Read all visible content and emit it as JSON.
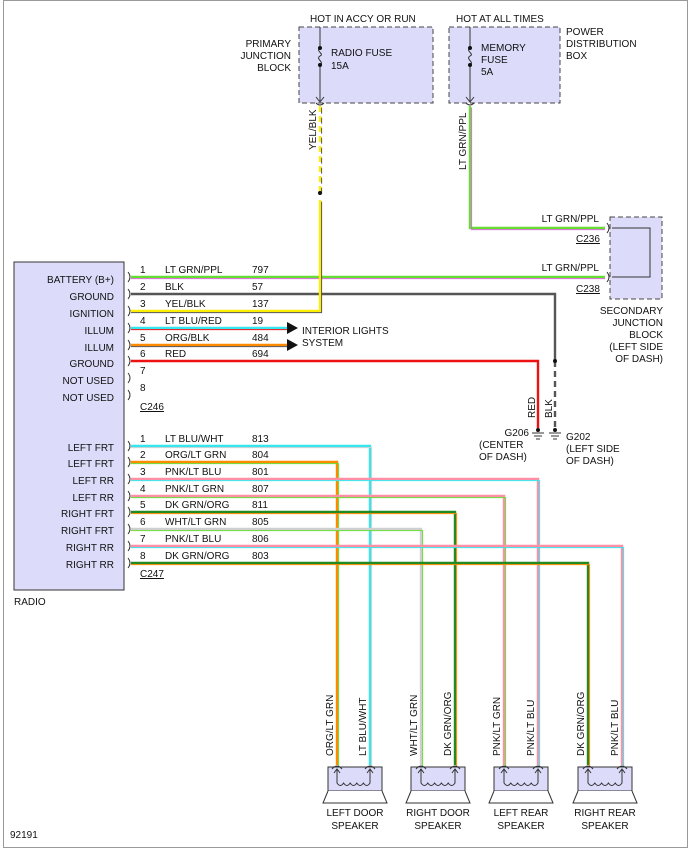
{
  "fuses": {
    "primary": {
      "header": "HOT IN ACCY OR RUN",
      "label": [
        "PRIMARY",
        "JUNCTION",
        "BLOCK"
      ],
      "fuse": [
        "RADIO FUSE",
        "15A"
      ],
      "wire": "YEL/BLK"
    },
    "power": {
      "header": "HOT AT ALL TIMES",
      "label": [
        "POWER",
        "DISTRIBUTION",
        "BOX"
      ],
      "fuse": [
        "MEMORY",
        "FUSE",
        "5A"
      ],
      "wire": "LT GRN/PPL"
    }
  },
  "secondary": {
    "c236": "C236",
    "c238": "C238",
    "wire236": "LT GRN/PPL",
    "wire238": "LT GRN/PPL",
    "label": [
      "SECONDARY",
      "JUNCTION",
      "BLOCK",
      "(LEFT SIDE",
      "OF DASH)"
    ]
  },
  "radio": {
    "title": "RADIO",
    "c246": {
      "id": "C246",
      "pins": [
        {
          "n": "1",
          "func": "BATTERY (B+)",
          "color": "LT GRN/PPL",
          "circuit": "797"
        },
        {
          "n": "2",
          "func": "GROUND",
          "color": "BLK",
          "circuit": "57"
        },
        {
          "n": "3",
          "func": "IGNITION",
          "color": "YEL/BLK",
          "circuit": "137"
        },
        {
          "n": "4",
          "func": "ILLUM",
          "color": "LT BLU/RED",
          "circuit": "19"
        },
        {
          "n": "5",
          "func": "ILLUM",
          "color": "ORG/BLK",
          "circuit": "484"
        },
        {
          "n": "6",
          "func": "GROUND",
          "color": "RED",
          "circuit": "694"
        },
        {
          "n": "7",
          "func": "NOT USED",
          "color": "",
          "circuit": ""
        },
        {
          "n": "8",
          "func": "NOT USED",
          "color": "",
          "circuit": ""
        }
      ]
    },
    "c247": {
      "id": "C247",
      "pins": [
        {
          "n": "1",
          "func": "LEFT FRT",
          "color": "LT BLU/WHT",
          "circuit": "813"
        },
        {
          "n": "2",
          "func": "LEFT FRT",
          "color": "ORG/LT GRN",
          "circuit": "804"
        },
        {
          "n": "3",
          "func": "LEFT RR",
          "color": "PNK/LT BLU",
          "circuit": "801"
        },
        {
          "n": "4",
          "func": "LEFT RR",
          "color": "PNK/LT GRN",
          "circuit": "807"
        },
        {
          "n": "5",
          "func": "RIGHT FRT",
          "color": "DK GRN/ORG",
          "circuit": "811"
        },
        {
          "n": "6",
          "func": "RIGHT FRT",
          "color": "WHT/LT GRN",
          "circuit": "805"
        },
        {
          "n": "7",
          "func": "RIGHT RR",
          "color": "PNK/LT BLU",
          "circuit": "806"
        },
        {
          "n": "8",
          "func": "RIGHT RR",
          "color": "DK GRN/ORG",
          "circuit": "803"
        }
      ]
    }
  },
  "interior": [
    "INTERIOR LIGHTS",
    "SYSTEM"
  ],
  "grounds": {
    "g206": [
      "G206",
      "(CENTER",
      "OF DASH)"
    ],
    "g202": [
      "G202",
      "(LEFT SIDE",
      "OF DASH)"
    ],
    "red_label": "RED",
    "blk_label": "BLK"
  },
  "speakers": [
    {
      "name": [
        "LEFT DOOR",
        "SPEAKER"
      ],
      "wires": [
        "ORG/LT GRN",
        "LT BLU/WHT"
      ]
    },
    {
      "name": [
        "RIGHT DOOR",
        "SPEAKER"
      ],
      "wires": [
        "WHT/LT GRN",
        "DK GRN/ORG"
      ]
    },
    {
      "name": [
        "LEFT REAR",
        "SPEAKER"
      ],
      "wires": [
        "PNK/LT GRN",
        "PNK/LT BLU"
      ]
    },
    {
      "name": [
        "RIGHT REAR",
        "SPEAKER"
      ],
      "wires": [
        "DK GRN/ORG",
        "PNK/LT BLU"
      ]
    }
  ],
  "figure_id": "92191",
  "colors": {
    "LT GRN": "#66dd33",
    "PPL": "#dd66dd",
    "BLK": "#555555",
    "YEL": "#ffee00",
    "LT BLU": "#33e6f0",
    "RED": "#ee1111",
    "ORG": "#ff8a00",
    "WHT": "#cfcfcf",
    "PNK": "#ff8fa5",
    "DK GRN": "#228a22",
    "component_fill": "#dcdcfa"
  }
}
